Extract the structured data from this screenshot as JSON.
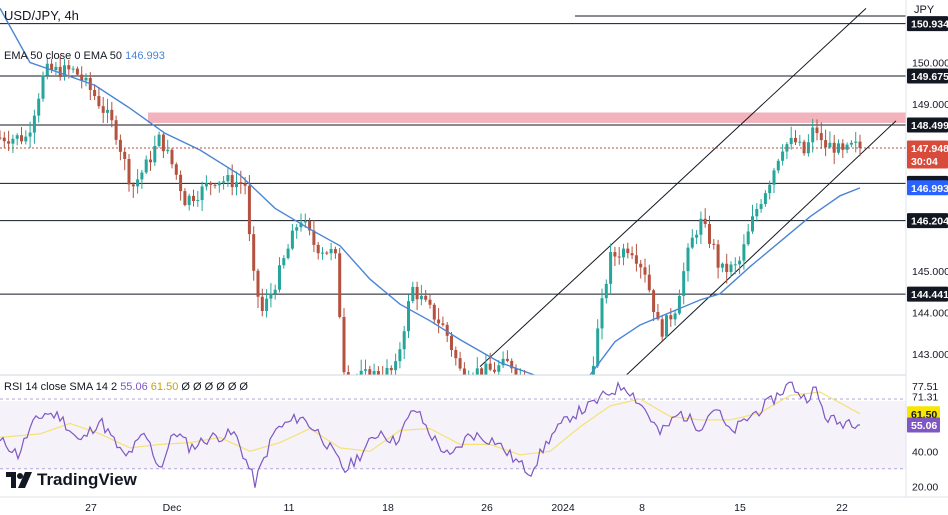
{
  "header": {
    "symbol": "USD/JPY, 4h",
    "ema_legend_prefix": "EMA 50 close 0 EMA 50",
    "ema_legend_value": "146.993",
    "rsi_legend_prefix": "RSI 14 close SMA 14 2",
    "rsi_legend_value1": "55.06",
    "rsi_legend_value2": "61.50",
    "rsi_legend_suffix": "Ø Ø Ø Ø Ø Ø",
    "currency": "JPY"
  },
  "brand": {
    "name": "TradingView",
    "logo_icon": "tradingview-logo-icon"
  },
  "colors": {
    "up": "#26a69a",
    "down": "#b5513f",
    "ema": "#4a85d6",
    "rsi": "#7e57c2",
    "rsi_sma": "#f5e178",
    "resistance_zone": "#ef9aa6",
    "line": "#131722"
  },
  "price_axis": {
    "ticks": [
      "150.000",
      "149.000",
      "145.000",
      "144.000",
      "143.000"
    ],
    "badges": [
      {
        "label": "150.934",
        "value": 150.934,
        "style": "dark"
      },
      {
        "label": "149.675",
        "value": 149.675,
        "style": "dark"
      },
      {
        "label": "148.499",
        "value": 148.499,
        "style": "dark"
      },
      {
        "label": "147.948",
        "value": 147.948,
        "style": "red"
      },
      {
        "label": "30:04",
        "value": 147.7,
        "style": "red"
      },
      {
        "label": "147.100",
        "value": 147.1,
        "style": "dark"
      },
      {
        "label": "146.993",
        "value": 146.993,
        "style": "blue"
      },
      {
        "label": "146.204",
        "value": 146.204,
        "style": "dark"
      },
      {
        "label": "144.441",
        "value": 144.441,
        "style": "dark"
      }
    ]
  },
  "rsi_axis": {
    "ticks": [
      "77.51",
      "71.31",
      "40.00",
      "20.00"
    ],
    "badges": [
      {
        "label": "61.50",
        "value": 61.5,
        "style": "yellow"
      },
      {
        "label": "55.06",
        "value": 55.06,
        "style": "purple"
      }
    ]
  },
  "time_axis": [
    "27",
    "Dec",
    "11",
    "18",
    "26",
    "2024",
    "8",
    "15",
    "22"
  ],
  "chart_data": {
    "type": "candlestick",
    "title": "USD/JPY, 4h",
    "x_categories": [
      "27",
      "Dec",
      "11",
      "18",
      "26",
      "2024",
      "8",
      "15",
      "22"
    ],
    "price_range": [
      142.5,
      151.5
    ],
    "horizontal_levels": [
      150.934,
      149.675,
      148.499,
      147.1,
      146.204,
      144.441
    ],
    "resistance_zone": [
      148.55,
      148.8
    ],
    "current_price": 147.948,
    "ema50_last": 146.993,
    "rsi_last": 55.06,
    "rsi_sma_last": 61.5,
    "rsi_range": [
      15,
      82
    ],
    "rsi_band": [
      30,
      70
    ],
    "anchors": [
      [
        27,
        148.2
      ],
      [
        45,
        149.8
      ],
      [
        75,
        149.8
      ],
      [
        95,
        149.2
      ],
      [
        115,
        148.4
      ],
      [
        132,
        147.0
      ],
      [
        148,
        147.6
      ],
      [
        160,
        148.2
      ],
      [
        175,
        147.4
      ],
      [
        185,
        146.7
      ],
      [
        200,
        146.9
      ],
      [
        215,
        147.2
      ],
      [
        245,
        147.1
      ],
      [
        252,
        145.0
      ],
      [
        262,
        144.0
      ],
      [
        277,
        144.8
      ],
      [
        300,
        146.3
      ],
      [
        315,
        145.6
      ],
      [
        335,
        145.4
      ],
      [
        345,
        142.4
      ],
      [
        370,
        142.5
      ],
      [
        395,
        142.6
      ],
      [
        412,
        144.6
      ],
      [
        425,
        144.2
      ],
      [
        445,
        143.6
      ],
      [
        460,
        142.6
      ],
      [
        490,
        142.6
      ],
      [
        510,
        142.8
      ],
      [
        520,
        142.5
      ],
      [
        540,
        141.8
      ],
      [
        570,
        141.2
      ],
      [
        585,
        141.6
      ],
      [
        600,
        143.9
      ],
      [
        610,
        145.3
      ],
      [
        630,
        145.6
      ],
      [
        645,
        145.0
      ],
      [
        660,
        143.5
      ],
      [
        675,
        144.1
      ],
      [
        690,
        145.6
      ],
      [
        700,
        146.2
      ],
      [
        713,
        145.6
      ],
      [
        720,
        145.0
      ],
      [
        738,
        145.1
      ],
      [
        755,
        146.4
      ],
      [
        770,
        147.2
      ],
      [
        782,
        148.0
      ],
      [
        795,
        148.1
      ],
      [
        805,
        147.8
      ],
      [
        815,
        148.5
      ],
      [
        822,
        148.0
      ],
      [
        833,
        148.0
      ],
      [
        843,
        147.8
      ],
      [
        853,
        148.0
      ],
      [
        860,
        147.95
      ]
    ],
    "ema_points": [
      [
        0,
        151.3
      ],
      [
        30,
        150.0
      ],
      [
        60,
        149.75
      ],
      [
        95,
        149.45
      ],
      [
        130,
        148.9
      ],
      [
        165,
        148.3
      ],
      [
        200,
        147.9
      ],
      [
        240,
        147.3
      ],
      [
        275,
        146.5
      ],
      [
        310,
        146.0
      ],
      [
        340,
        145.6
      ],
      [
        370,
        144.8
      ],
      [
        400,
        144.2
      ],
      [
        430,
        143.8
      ],
      [
        460,
        143.35
      ],
      [
        500,
        142.8
      ],
      [
        540,
        142.45
      ],
      [
        565,
        142.35
      ],
      [
        590,
        142.5
      ],
      [
        615,
        143.3
      ],
      [
        640,
        143.7
      ],
      [
        670,
        144.0
      ],
      [
        700,
        144.3
      ],
      [
        720,
        144.45
      ],
      [
        750,
        145.1
      ],
      [
        780,
        145.7
      ],
      [
        810,
        146.3
      ],
      [
        840,
        146.8
      ],
      [
        860,
        146.99
      ]
    ],
    "rsi_anchors": [
      [
        5,
        45
      ],
      [
        18,
        38
      ],
      [
        32,
        55
      ],
      [
        45,
        62
      ],
      [
        60,
        60
      ],
      [
        80,
        45
      ],
      [
        100,
        58
      ],
      [
        125,
        36
      ],
      [
        145,
        50
      ],
      [
        160,
        30
      ],
      [
        175,
        52
      ],
      [
        190,
        42
      ],
      [
        210,
        48
      ],
      [
        235,
        50
      ],
      [
        255,
        22
      ],
      [
        275,
        52
      ],
      [
        300,
        60
      ],
      [
        320,
        50
      ],
      [
        345,
        29
      ],
      [
        360,
        38
      ],
      [
        380,
        52
      ],
      [
        395,
        45
      ],
      [
        415,
        65
      ],
      [
        430,
        50
      ],
      [
        450,
        36
      ],
      [
        470,
        50
      ],
      [
        495,
        46
      ],
      [
        515,
        35
      ],
      [
        530,
        28
      ],
      [
        550,
        48
      ],
      [
        570,
        60
      ],
      [
        590,
        66
      ],
      [
        610,
        74
      ],
      [
        625,
        78
      ],
      [
        645,
        64
      ],
      [
        660,
        50
      ],
      [
        680,
        62
      ],
      [
        700,
        54
      ],
      [
        715,
        66
      ],
      [
        730,
        50
      ],
      [
        750,
        60
      ],
      [
        770,
        68
      ],
      [
        790,
        79
      ],
      [
        805,
        70
      ],
      [
        815,
        76
      ],
      [
        825,
        60
      ],
      [
        840,
        56
      ],
      [
        850,
        58
      ],
      [
        860,
        55.06
      ]
    ],
    "rsi_sma_points": [
      [
        0,
        48
      ],
      [
        40,
        50
      ],
      [
        70,
        56
      ],
      [
        100,
        50
      ],
      [
        130,
        42
      ],
      [
        160,
        44
      ],
      [
        190,
        45
      ],
      [
        220,
        48
      ],
      [
        250,
        40
      ],
      [
        280,
        45
      ],
      [
        310,
        53
      ],
      [
        340,
        42
      ],
      [
        370,
        40
      ],
      [
        400,
        52
      ],
      [
        430,
        53
      ],
      [
        460,
        44
      ],
      [
        490,
        44
      ],
      [
        520,
        38
      ],
      [
        550,
        40
      ],
      [
        580,
        54
      ],
      [
        610,
        66
      ],
      [
        640,
        70
      ],
      [
        670,
        60
      ],
      [
        700,
        58
      ],
      [
        730,
        58
      ],
      [
        760,
        62
      ],
      [
        790,
        72
      ],
      [
        820,
        74
      ],
      [
        860,
        61.5
      ]
    ],
    "channel": {
      "upper": [
        [
          480,
          142.7
        ],
        [
          866,
          151.3
        ]
      ],
      "lower": [
        [
          622,
          142.4
        ],
        [
          896,
          148.6
        ]
      ]
    }
  }
}
